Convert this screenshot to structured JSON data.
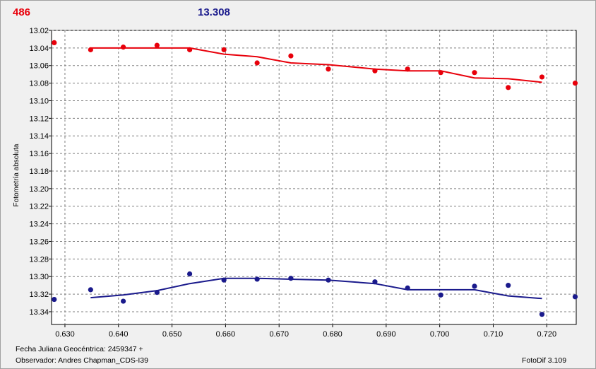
{
  "header": {
    "left_value": "486",
    "right_value": "13.308",
    "left_color": "#e8000b",
    "right_color": "#1a1a8c"
  },
  "footer": {
    "julian_line": "Fecha Juliana Geocéntrica: 2459347 +",
    "observer_line": "Observador: Andres Chapman_CDS-I39",
    "software": "FotoDif 3.109"
  },
  "chart_data": {
    "type": "scatter",
    "title": "",
    "xlabel": "",
    "ylabel": "Fotometría absoluta",
    "xlim": [
      0.6275,
      0.7255
    ],
    "ylim": [
      13.02,
      13.3545
    ],
    "y_inverted": true,
    "grid": true,
    "x_ticks": [
      0.63,
      0.64,
      0.65,
      0.66,
      0.67,
      0.68,
      0.69,
      0.7,
      0.71,
      0.72
    ],
    "x_tick_labels": [
      "0.630",
      "0.640",
      "0.650",
      "0.660",
      "0.670",
      "0.680",
      "0.690",
      "0.700",
      "0.710",
      "0.720"
    ],
    "y_ticks": [
      13.02,
      13.04,
      13.06,
      13.08,
      13.1,
      13.12,
      13.14,
      13.16,
      13.18,
      13.2,
      13.22,
      13.24,
      13.26,
      13.28,
      13.3,
      13.32,
      13.34
    ],
    "y_tick_labels": [
      "13.02",
      "13.04",
      "13.06",
      "13.08",
      "13.10",
      "13.12",
      "13.14",
      "13.16",
      "13.18",
      "13.20",
      "13.22",
      "13.24",
      "13.26",
      "13.28",
      "13.30",
      "13.32",
      "13.34"
    ],
    "series": [
      {
        "color": "#e8000b",
        "points": [
          [
            0.628,
            13.034
          ],
          [
            0.6348,
            13.042
          ],
          [
            0.6409,
            13.039
          ],
          [
            0.6472,
            13.037
          ],
          [
            0.6533,
            13.042
          ],
          [
            0.6597,
            13.042
          ],
          [
            0.6659,
            13.057
          ],
          [
            0.6722,
            13.049
          ],
          [
            0.6792,
            13.064
          ],
          [
            0.6879,
            13.066
          ],
          [
            0.694,
            13.064
          ],
          [
            0.7002,
            13.068
          ],
          [
            0.7065,
            13.068
          ],
          [
            0.7128,
            13.085
          ],
          [
            0.7191,
            13.073
          ],
          [
            0.7253,
            13.08
          ]
        ],
        "trend": [
          [
            0.6348,
            13.04
          ],
          [
            0.6409,
            13.04
          ],
          [
            0.6472,
            13.04
          ],
          [
            0.6533,
            13.04
          ],
          [
            0.6597,
            13.047
          ],
          [
            0.6659,
            13.05
          ],
          [
            0.6722,
            13.057
          ],
          [
            0.6792,
            13.059
          ],
          [
            0.6879,
            13.064
          ],
          [
            0.694,
            13.066
          ],
          [
            0.7002,
            13.066
          ],
          [
            0.7065,
            13.074
          ],
          [
            0.7128,
            13.075
          ],
          [
            0.7191,
            13.079
          ]
        ]
      },
      {
        "color": "#1a1a8c",
        "points": [
          [
            0.628,
            13.326
          ],
          [
            0.6348,
            13.315
          ],
          [
            0.6409,
            13.328
          ],
          [
            0.6472,
            13.318
          ],
          [
            0.6533,
            13.297
          ],
          [
            0.6597,
            13.304
          ],
          [
            0.6659,
            13.303
          ],
          [
            0.6722,
            13.302
          ],
          [
            0.6792,
            13.304
          ],
          [
            0.6879,
            13.306
          ],
          [
            0.694,
            13.313
          ],
          [
            0.7002,
            13.321
          ],
          [
            0.7065,
            13.311
          ],
          [
            0.7128,
            13.31
          ],
          [
            0.7191,
            13.343
          ],
          [
            0.7253,
            13.323
          ]
        ],
        "trend": [
          [
            0.6348,
            13.324
          ],
          [
            0.6409,
            13.321
          ],
          [
            0.6472,
            13.316
          ],
          [
            0.6533,
            13.308
          ],
          [
            0.6597,
            13.302
          ],
          [
            0.6659,
            13.302
          ],
          [
            0.6722,
            13.303
          ],
          [
            0.6792,
            13.304
          ],
          [
            0.6879,
            13.308
          ],
          [
            0.694,
            13.315
          ],
          [
            0.7002,
            13.315
          ],
          [
            0.7065,
            13.315
          ],
          [
            0.7128,
            13.322
          ],
          [
            0.7191,
            13.325
          ]
        ]
      }
    ]
  }
}
